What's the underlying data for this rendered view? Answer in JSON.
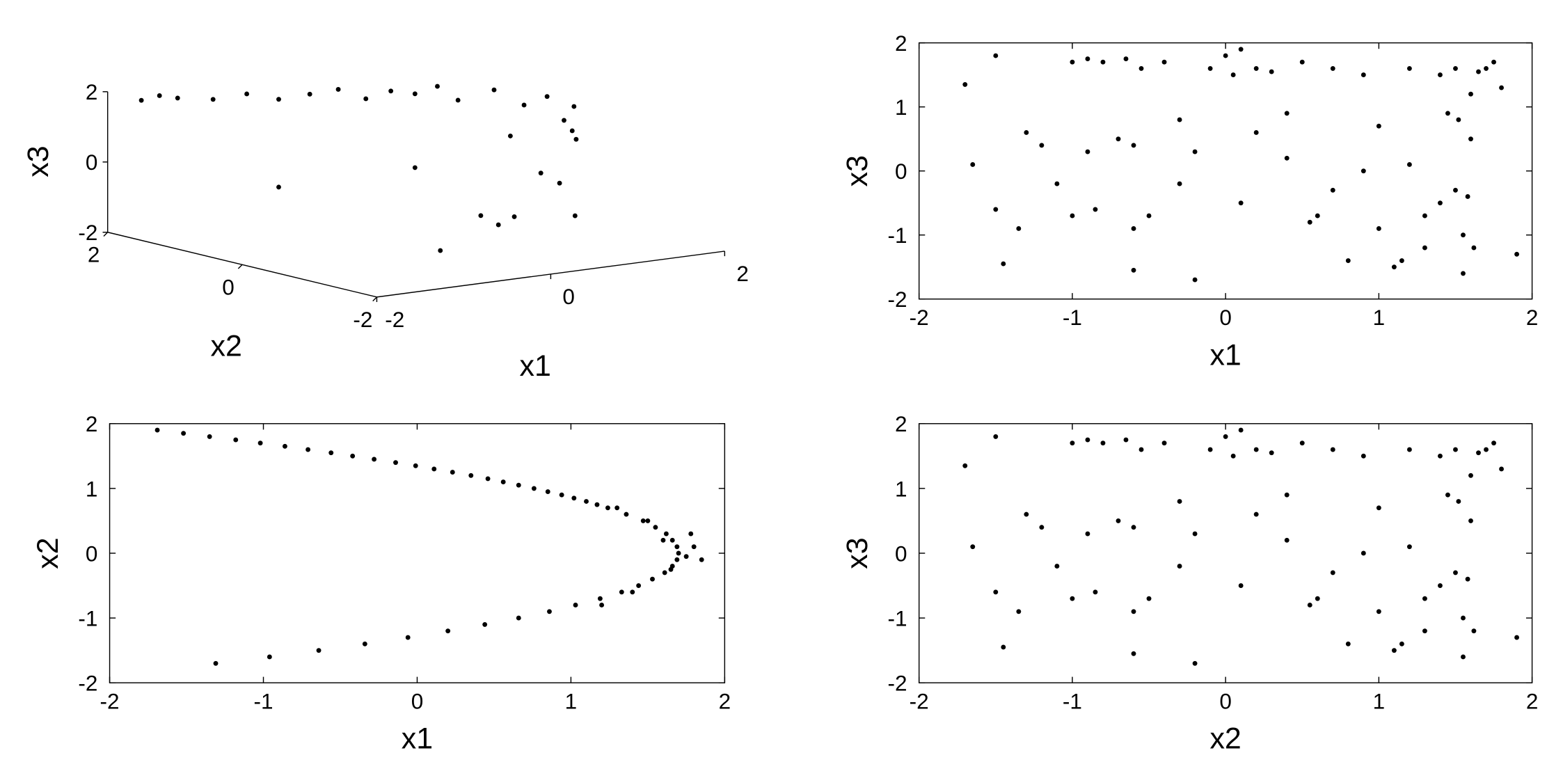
{
  "chart_data": [
    {
      "type": "scatter3d",
      "xlabel": "x1",
      "ylabel": "x2",
      "zlabel": "x3",
      "color": "#000000",
      "xlim": [
        -2,
        2
      ],
      "ylim": [
        -2,
        2
      ],
      "zlim": [
        -2,
        2
      ],
      "xticks": [
        -2,
        0,
        2
      ],
      "yticks": [
        -2,
        0,
        2
      ],
      "zticks": [
        -2,
        0,
        2
      ],
      "x": [
        -1.69,
        -1.35,
        -1.02,
        -0.71,
        -0.42,
        -0.14,
        0.11,
        0.35,
        0.56,
        0.76,
        0.94,
        1.1,
        1.36,
        1.55,
        1.66,
        1.7,
        1.66,
        1.53,
        1.33,
        1.03,
        0.66,
        0.2,
        -0.34,
        -0.96,
        -1.52,
        -0.42,
        0.76,
        1.47,
        1.44,
        -0.06
      ],
      "y": [
        1.9,
        1.8,
        1.7,
        1.6,
        1.5,
        1.4,
        1.3,
        1.2,
        1.1,
        1.0,
        0.9,
        0.8,
        0.6,
        0.4,
        0.2,
        0.0,
        -0.2,
        -0.4,
        -0.6,
        -0.8,
        -1.0,
        -1.2,
        -1.4,
        -1.6,
        1.85,
        1.5,
        1.0,
        0.5,
        -0.5,
        -1.3
      ],
      "z": [
        1.7,
        1.7,
        1.6,
        1.7,
        1.5,
        1.6,
        1.7,
        1.4,
        1.6,
        1.5,
        1.7,
        1.3,
        1.6,
        1.2,
        1.5,
        0.9,
        1.4,
        0.6,
        1.0,
        -0.3,
        0.2,
        -0.8,
        -0.5,
        -1.2,
        1.8,
        -1.0,
        -0.6,
        0.3,
        -1.5,
        -0.9
      ]
    },
    {
      "type": "scatter",
      "xlabel": "x1",
      "ylabel": "x3",
      "color": "#000000",
      "xlim": [
        -2,
        2
      ],
      "ylim": [
        -2,
        2
      ],
      "xticks": [
        -2,
        -1,
        0,
        1,
        2
      ],
      "yticks": [
        -2,
        -1,
        0,
        1,
        2
      ],
      "x": [
        -1.7,
        -1.65,
        -1.5,
        -1.45,
        -1.35,
        -1.2,
        -1.1,
        -1.0,
        -0.9,
        -0.85,
        -0.8,
        -0.7,
        -0.65,
        -0.6,
        -0.55,
        -0.5,
        -0.4,
        -0.3,
        -0.2,
        -0.1,
        0.0,
        0.05,
        0.1,
        0.2,
        0.3,
        0.4,
        0.5,
        0.6,
        0.7,
        0.8,
        0.9,
        1.0,
        1.1,
        1.2,
        1.3,
        1.4,
        1.5,
        1.55,
        1.6,
        1.65,
        1.7,
        1.75,
        1.8,
        1.9,
        -0.9,
        -0.6,
        -0.3,
        0.1,
        0.4,
        0.7,
        1.0,
        1.2,
        1.4,
        1.55,
        1.6,
        1.5,
        1.45,
        1.3,
        1.15,
        0.9,
        0.55,
        0.2,
        -0.2,
        -0.6,
        -1.0,
        -1.3,
        -1.5,
        1.58,
        1.52,
        1.62
      ],
      "y": [
        1.35,
        0.1,
        -0.6,
        -1.45,
        -0.9,
        0.4,
        -0.2,
        1.7,
        1.75,
        -0.6,
        1.7,
        0.5,
        1.75,
        -1.55,
        1.6,
        -0.7,
        1.7,
        -0.2,
        -1.7,
        1.6,
        1.8,
        1.5,
        1.9,
        1.6,
        1.55,
        0.9,
        1.7,
        -0.7,
        1.6,
        -1.4,
        1.5,
        0.7,
        -1.5,
        1.6,
        -1.2,
        1.5,
        1.6,
        -1.6,
        1.2,
        1.55,
        1.6,
        1.7,
        1.3,
        -1.3,
        0.3,
        0.4,
        0.8,
        -0.5,
        0.2,
        -0.3,
        -0.9,
        0.1,
        -0.5,
        -1.0,
        0.5,
        -0.3,
        0.9,
        -0.7,
        -1.4,
        0.0,
        -0.8,
        0.6,
        0.3,
        -0.9,
        -0.7,
        0.6,
        1.8,
        -0.4,
        0.8,
        -1.2
      ]
    },
    {
      "type": "scatter",
      "xlabel": "x1",
      "ylabel": "x2",
      "color": "#000000",
      "xlim": [
        -2,
        2
      ],
      "ylim": [
        -2,
        2
      ],
      "xticks": [
        -2,
        -1,
        0,
        1,
        2
      ],
      "yticks": [
        -2,
        -1,
        0,
        1,
        2
      ],
      "x": [
        -1.69,
        -1.52,
        -1.35,
        -1.18,
        -1.02,
        -0.86,
        -0.71,
        -0.56,
        -0.42,
        -0.28,
        -0.14,
        -0.01,
        0.11,
        0.23,
        0.35,
        0.46,
        0.56,
        0.66,
        0.76,
        0.85,
        0.94,
        1.02,
        1.1,
        1.17,
        1.24,
        1.36,
        1.47,
        1.55,
        1.62,
        1.66,
        1.69,
        1.7,
        1.69,
        1.66,
        1.61,
        1.53,
        1.44,
        1.33,
        1.19,
        1.03,
        0.86,
        0.66,
        0.44,
        0.2,
        -0.06,
        -0.34,
        -0.64,
        -0.96,
        -1.31,
        1.8,
        1.75,
        1.85,
        1.6,
        1.65,
        1.78,
        1.5,
        1.4,
        1.3,
        1.2
      ],
      "y": [
        1.9,
        1.85,
        1.8,
        1.75,
        1.7,
        1.65,
        1.6,
        1.55,
        1.5,
        1.45,
        1.4,
        1.35,
        1.3,
        1.25,
        1.2,
        1.15,
        1.1,
        1.05,
        1.0,
        0.95,
        0.9,
        0.85,
        0.8,
        0.75,
        0.7,
        0.6,
        0.5,
        0.4,
        0.3,
        0.2,
        0.1,
        0.0,
        -0.1,
        -0.2,
        -0.3,
        -0.4,
        -0.5,
        -0.6,
        -0.7,
        -0.8,
        -0.9,
        -1.0,
        -1.1,
        -1.2,
        -1.3,
        -1.4,
        -1.5,
        -1.6,
        -1.7,
        0.1,
        -0.05,
        -0.1,
        0.2,
        -0.25,
        0.3,
        0.5,
        -0.6,
        0.7,
        -0.8
      ]
    },
    {
      "type": "scatter",
      "xlabel": "x2",
      "ylabel": "x3",
      "color": "#000000",
      "xlim": [
        -2,
        2
      ],
      "ylim": [
        -2,
        2
      ],
      "xticks": [
        -2,
        -1,
        0,
        1,
        2
      ],
      "yticks": [
        -2,
        -1,
        0,
        1,
        2
      ],
      "x": [
        -1.7,
        -1.65,
        -1.5,
        -1.45,
        -1.35,
        -1.2,
        -1.1,
        -1.0,
        -0.9,
        -0.85,
        -0.8,
        -0.7,
        -0.65,
        -0.6,
        -0.55,
        -0.5,
        -0.4,
        -0.3,
        -0.2,
        -0.1,
        0.0,
        0.05,
        0.1,
        0.2,
        0.3,
        0.4,
        0.5,
        0.6,
        0.7,
        0.8,
        0.9,
        1.0,
        1.1,
        1.2,
        1.3,
        1.4,
        1.5,
        1.55,
        1.6,
        1.65,
        1.7,
        1.75,
        1.8,
        1.9,
        -0.9,
        -0.6,
        -0.3,
        0.1,
        0.4,
        0.7,
        1.0,
        1.2,
        1.4,
        1.55,
        1.6,
        1.5,
        1.45,
        1.3,
        1.15,
        0.9,
        0.55,
        0.2,
        -0.2,
        -0.6,
        -1.0,
        -1.3,
        -1.5,
        1.58,
        1.52,
        1.62
      ],
      "y": [
        1.35,
        0.1,
        -0.6,
        -1.45,
        -0.9,
        0.4,
        -0.2,
        1.7,
        1.75,
        -0.6,
        1.7,
        0.5,
        1.75,
        -1.55,
        1.6,
        -0.7,
        1.7,
        -0.2,
        -1.7,
        1.6,
        1.8,
        1.5,
        1.9,
        1.6,
        1.55,
        0.9,
        1.7,
        -0.7,
        1.6,
        -1.4,
        1.5,
        0.7,
        -1.5,
        1.6,
        -1.2,
        1.5,
        1.6,
        -1.6,
        1.2,
        1.55,
        1.6,
        1.7,
        1.3,
        -1.3,
        0.3,
        0.4,
        0.8,
        -0.5,
        0.2,
        -0.3,
        -0.9,
        0.1,
        -0.5,
        -1.0,
        0.5,
        -0.3,
        0.9,
        -0.7,
        -1.4,
        0.0,
        -0.8,
        0.6,
        0.3,
        -0.9,
        -0.7,
        0.6,
        1.8,
        -0.4,
        0.8,
        -1.2
      ]
    }
  ]
}
